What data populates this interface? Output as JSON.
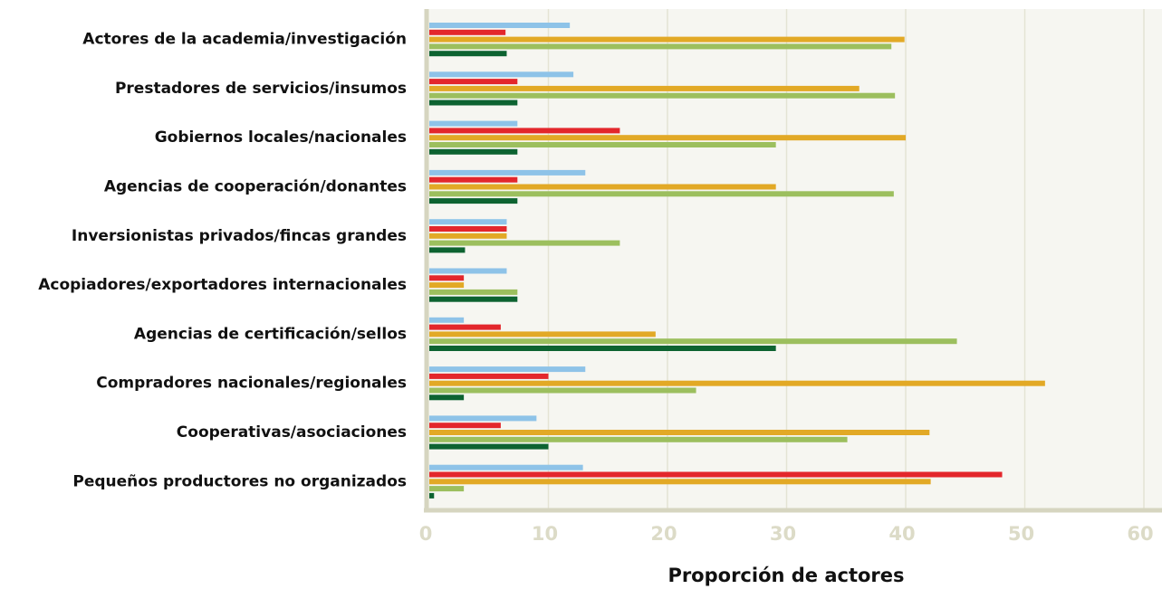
{
  "chart_data": {
    "type": "hbar",
    "x_label": "Proporción de actores",
    "categories": [
      "Actores de la academia/investigación",
      "Prestadores de servicios/insumos",
      "Gobiernos locales/nacionales",
      "Agencias de cooperación/donantes",
      "Inversionistas privados/fincas grandes",
      "Acopiadores/exportadores internacionales",
      "Agencias de certificación/sellos",
      "Compradores nacionales/regionales",
      "Cooperativas/asociaciones",
      "Pequeños productores no organizados"
    ],
    "series": [
      {
        "color": "#8ec3e8",
        "values": [
          11.8,
          12.1,
          7.4,
          13.1,
          6.5,
          6.5,
          2.9,
          13.1,
          9.0,
          12.9
        ]
      },
      {
        "color": "#e3272c",
        "values": [
          6.4,
          7.4,
          16.0,
          7.4,
          6.5,
          2.9,
          6.0,
          10.0,
          6.0,
          48.1
        ]
      },
      {
        "color": "#e2a926",
        "values": [
          39.9,
          36.1,
          40.0,
          29.1,
          6.5,
          2.9,
          19.0,
          51.7,
          42.0,
          42.1
        ]
      },
      {
        "color": "#9cbf5e",
        "values": [
          38.8,
          39.1,
          29.1,
          39.0,
          16.0,
          7.4,
          44.3,
          22.4,
          35.1,
          2.9
        ]
      },
      {
        "color": "#0d6331",
        "values": [
          6.5,
          7.4,
          7.4,
          7.4,
          3.0,
          7.4,
          29.1,
          2.9,
          10.0,
          0.4
        ]
      }
    ],
    "xlim": [
      0,
      60
    ],
    "xticks": [
      0,
      10,
      20,
      30,
      40,
      50,
      60
    ],
    "grid": true
  }
}
